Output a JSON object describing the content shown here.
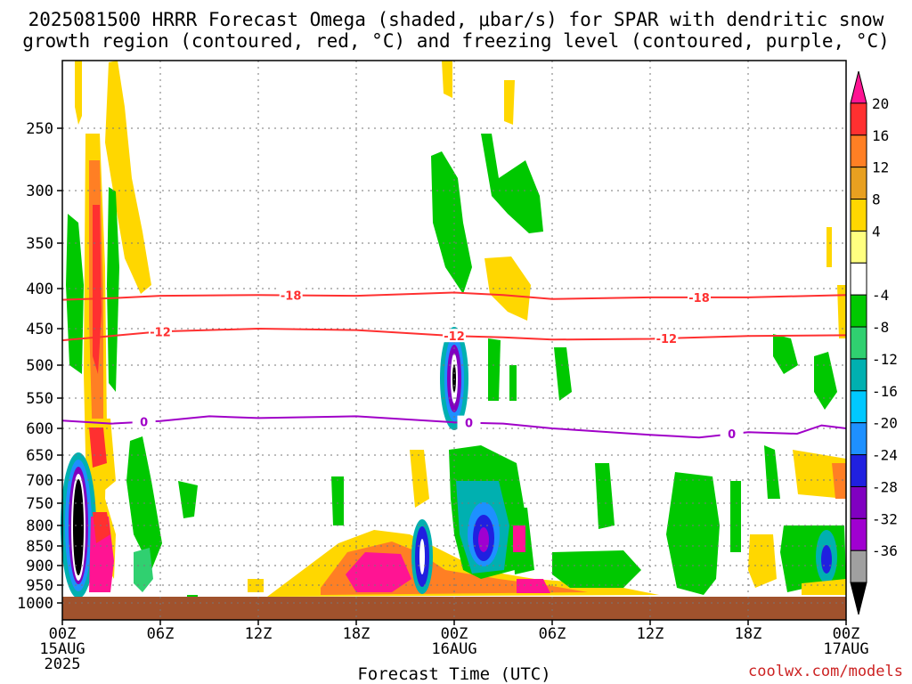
{
  "title": {
    "line1": "2025081500 HRRR Forecast Omega (shaded, μbar/s) for SPAR with dendritic snow",
    "line2": "growth region (contoured, red, °C) and freezing level (contoured, purple, °C)"
  },
  "credit": "coolwx.com/models",
  "chart_data": {
    "type": "heatmap",
    "title": "2025081500 HRRR Forecast Omega (shaded, μbar/s) for SPAR with dendritic snow growth region (contoured, red, °C) and freezing level (contoured, purple, °C)",
    "xlabel": "Forecast Time (UTC)",
    "ylabel": "",
    "x_range_hours": [
      0,
      48
    ],
    "y_axis": "pressure (hPa), inverted",
    "y_ticks": [
      250,
      300,
      350,
      400,
      450,
      500,
      550,
      600,
      650,
      700,
      750,
      800,
      850,
      900,
      950,
      1000
    ],
    "x_ticks": [
      {
        "hour": 0,
        "lines": [
          "00Z",
          "15AUG",
          "2025"
        ]
      },
      {
        "hour": 6,
        "lines": [
          "06Z"
        ]
      },
      {
        "hour": 12,
        "lines": [
          "12Z"
        ]
      },
      {
        "hour": 18,
        "lines": [
          "18Z"
        ]
      },
      {
        "hour": 24,
        "lines": [
          "00Z",
          "16AUG"
        ]
      },
      {
        "hour": 30,
        "lines": [
          "06Z"
        ]
      },
      {
        "hour": 36,
        "lines": [
          "12Z"
        ]
      },
      {
        "hour": 42,
        "lines": [
          "18Z"
        ]
      },
      {
        "hour": 48,
        "lines": [
          "00Z",
          "17AUG"
        ]
      }
    ],
    "grid": true,
    "colorbar": {
      "labels": [
        20,
        16,
        12,
        8,
        4,
        -4,
        -8,
        -12,
        -16,
        -20,
        -24,
        -28,
        -32,
        -36
      ],
      "colors": [
        "#ff1493",
        "#ff3030",
        "#ff7f24",
        "#e8a020",
        "#ffd700",
        "#ffff80",
        "#ffffff",
        "#00c800",
        "#30d070",
        "#00b0b0",
        "#00c8ff",
        "#1e90ff",
        "#2020e0",
        "#8000c0",
        "#a000d0",
        "#a0a0a0",
        "#000000"
      ]
    },
    "contours": [
      {
        "level": -18,
        "color": "#ff3030",
        "label": "-18",
        "points": [
          [
            0,
            414
          ],
          [
            3,
            412
          ],
          [
            6,
            409
          ],
          [
            12,
            408
          ],
          [
            18,
            409
          ],
          [
            24,
            405
          ],
          [
            27,
            408
          ],
          [
            30,
            413
          ],
          [
            36,
            411
          ],
          [
            42,
            411
          ],
          [
            48,
            408
          ]
        ]
      },
      {
        "level": -12,
        "color": "#ff3030",
        "label": "-12",
        "points": [
          [
            0,
            466
          ],
          [
            3,
            460
          ],
          [
            6,
            454
          ],
          [
            12,
            450
          ],
          [
            18,
            452
          ],
          [
            24,
            460
          ],
          [
            27,
            462
          ],
          [
            30,
            465
          ],
          [
            36,
            464
          ],
          [
            42,
            460
          ],
          [
            48,
            459
          ]
        ]
      },
      {
        "level": 0,
        "color": "#a000c8",
        "label": "0",
        "points": [
          [
            0,
            587
          ],
          [
            3,
            592
          ],
          [
            6,
            588
          ],
          [
            9,
            580
          ],
          [
            12,
            583
          ],
          [
            18,
            580
          ],
          [
            24,
            590
          ],
          [
            27,
            592
          ],
          [
            30,
            600
          ],
          [
            36,
            612
          ],
          [
            39,
            617
          ],
          [
            42,
            607
          ],
          [
            45,
            610
          ],
          [
            46.5,
            595
          ],
          [
            48,
            600
          ]
        ]
      }
    ],
    "omega_features": [
      {
        "x_hour": 1.2,
        "p": 780,
        "value": -36
      },
      {
        "x_hour": 2.2,
        "p": 380,
        "value": 16
      },
      {
        "x_hour": 2.6,
        "p": 890,
        "value": 20
      },
      {
        "x_hour": 23.9,
        "p": 540,
        "value": -32
      },
      {
        "x_hour": 26.8,
        "p": 840,
        "value": -28
      },
      {
        "x_hour": 21.3,
        "p": 870,
        "value": -24
      },
      {
        "x_hour": 18.5,
        "p": 910,
        "value": 20
      },
      {
        "x_hour": 46.8,
        "p": 880,
        "value": -20
      }
    ]
  }
}
